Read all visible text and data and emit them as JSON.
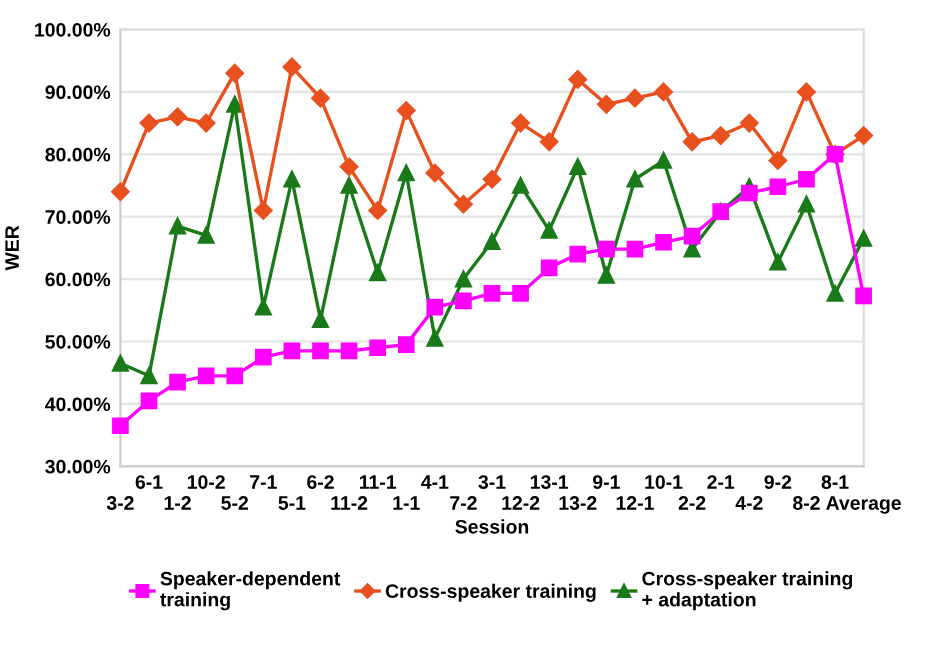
{
  "chart_data": {
    "type": "line",
    "xlabel": "Session",
    "ylabel": "WER",
    "categories": [
      "3-2",
      "6-1",
      "1-2",
      "10-2",
      "5-2",
      "7-1",
      "5-1",
      "6-2",
      "11-2",
      "11-1",
      "1-1",
      "4-1",
      "7-2",
      "3-1",
      "12-2",
      "13-1",
      "13-2",
      "9-1",
      "12-1",
      "10-1",
      "2-2",
      "2-1",
      "4-2",
      "9-2",
      "8-2",
      "8-1",
      "Average"
    ],
    "series": [
      {
        "name": "Speaker-dependent\ntraining",
        "color": "#ff00ff",
        "marker": "square",
        "values": [
          36.5,
          40.5,
          43.5,
          44.5,
          44.5,
          47.5,
          48.5,
          48.5,
          48.5,
          49,
          49.5,
          55.5,
          56.5,
          57.7,
          57.7,
          61.8,
          64,
          64.8,
          64.8,
          65.9,
          66.9,
          70.8,
          73.8,
          74.8,
          76,
          80,
          57.3
        ]
      },
      {
        "name": "Cross-speaker training",
        "color": "#e8501e",
        "marker": "diamond",
        "values": [
          74,
          85,
          86,
          85,
          93,
          71,
          94,
          89,
          78,
          71,
          87,
          77,
          72,
          76,
          85,
          82,
          92,
          88,
          89,
          90,
          82,
          83,
          85,
          79,
          90,
          80,
          83
        ]
      },
      {
        "name": "Cross-speaker training\n+ adaptation",
        "color": "#1a7a1a",
        "marker": "triangle",
        "values": [
          46.5,
          44.5,
          68.5,
          67,
          88,
          55.5,
          76,
          53.5,
          75,
          61,
          77,
          50.5,
          60,
          66,
          75,
          67.8,
          78,
          60.6,
          76,
          79,
          64.8,
          70.8,
          74.8,
          62.7,
          72,
          57.7,
          66.5
        ]
      }
    ],
    "ylim": [
      30,
      100
    ],
    "yticks": [
      {
        "value": 30,
        "label": "30.00%"
      },
      {
        "value": 40,
        "label": "40.00%"
      },
      {
        "value": 50,
        "label": "50.00%"
      },
      {
        "value": 60,
        "label": "60.00%"
      },
      {
        "value": 70,
        "label": "70.00%"
      },
      {
        "value": 80,
        "label": "80.00%"
      },
      {
        "value": 90,
        "label": "90.00%"
      },
      {
        "value": 100,
        "label": "100.00%"
      }
    ],
    "grid": "y",
    "legend": "bottom"
  }
}
